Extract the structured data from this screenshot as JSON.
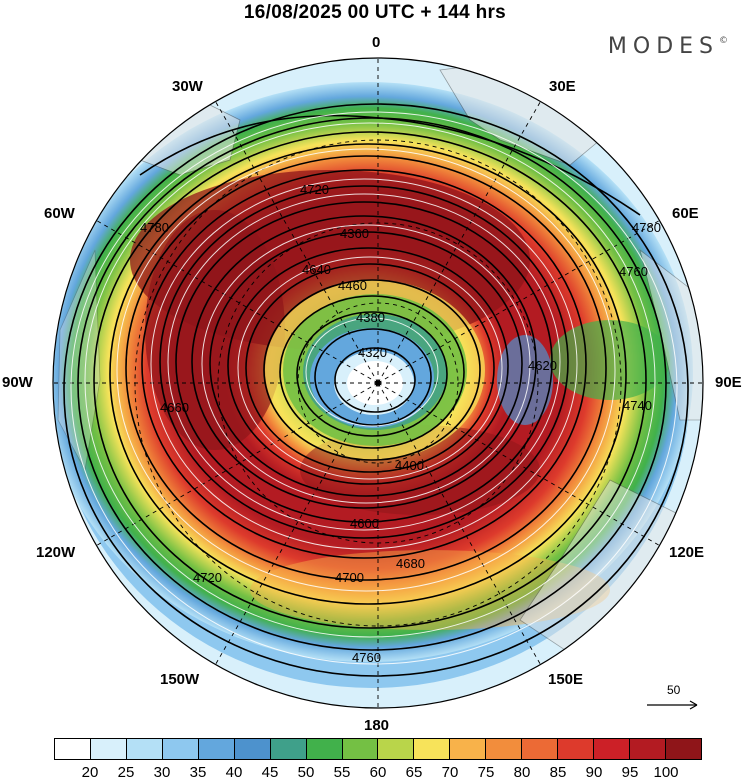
{
  "header": {
    "title": "16/08/2025  00 UTC  + 144 hrs",
    "brand": "MODES",
    "brand_mark": "©"
  },
  "map": {
    "projection": "north-polar-stereographic",
    "longitude_labels": {
      "lon_0": "0",
      "lon_30e": "30E",
      "lon_60e": "60E",
      "lon_90e": "90E",
      "lon_120e": "120E",
      "lon_150e": "150E",
      "lon_180": "180",
      "lon_150w": "150W",
      "lon_120w": "120W",
      "lon_90w": "90W",
      "lon_60w": "60W",
      "lon_30w": "30W"
    },
    "contour_labels": [
      "4320",
      "4360",
      "4380",
      "4400",
      "4420",
      "4440",
      "4460",
      "4480",
      "4520",
      "4540",
      "4560",
      "4580",
      "4600",
      "4620",
      "4640",
      "4660",
      "4680",
      "4700",
      "4720",
      "4740",
      "4760",
      "4780"
    ],
    "field": "wind speed shading with geopotential height contours and streamlines",
    "vector_reference": {
      "label": "50"
    }
  },
  "colorbar": {
    "colors": [
      "#ffffff",
      "#d8f0fb",
      "#b4e0f6",
      "#8ec8ef",
      "#63a7dd",
      "#4d92cd",
      "#3fa08a",
      "#41b14b",
      "#74c044",
      "#b9d54a",
      "#f7e35a",
      "#f8b24a",
      "#f28d3c",
      "#ec6a35",
      "#dd3a2c",
      "#cc2027",
      "#b31b22",
      "#8f1519"
    ],
    "tick_labels": [
      "20",
      "25",
      "30",
      "35",
      "40",
      "45",
      "50",
      "55",
      "60",
      "65",
      "70",
      "75",
      "80",
      "85",
      "90",
      "95",
      "100"
    ]
  }
}
